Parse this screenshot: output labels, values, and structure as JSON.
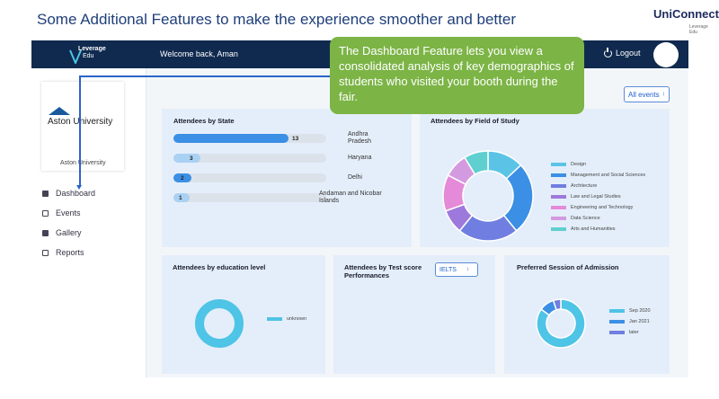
{
  "slide_title": "Some Additional Features to make the experience smoother and better",
  "brand_logo": {
    "name": "UniConnect",
    "sub": "Leverage Edu"
  },
  "topbar": {
    "brand_line1": "Leverage",
    "brand_line2": "Edu",
    "welcome": "Welcome back, Aman",
    "logout": "Logout",
    "bg_color": "#102a4f"
  },
  "sidebar": {
    "university_name": "Aston University",
    "university_sub": "Aston University",
    "items": [
      {
        "label": "Dashboard",
        "icon": "dashboard-icon"
      },
      {
        "label": "Events",
        "icon": "calendar-icon"
      },
      {
        "label": "Gallery",
        "icon": "gallery-icon"
      },
      {
        "label": "Reports",
        "icon": "reports-icon"
      }
    ]
  },
  "filter": {
    "selected": "All events"
  },
  "callout_text": "The Dashboard Feature lets you view a consolidated analysis of key demographics of students who visited your booth during the fair.",
  "accent_color": "#7cb446",
  "cards": {
    "state": {
      "title": "Attendees by State"
    },
    "field": {
      "title": "Attendees by Field of Study"
    },
    "education": {
      "title": "Attendees by education level"
    },
    "test": {
      "title": "Attendees by Test score Performances",
      "select": "IELTS"
    },
    "session": {
      "title": "Preferred Session of Admission"
    }
  },
  "chart_data": [
    {
      "type": "bar",
      "title": "Attendees by State",
      "categories": [
        "Andhra Pradesh",
        "Haryana",
        "Delhi",
        "Andaman and Nicobar Islands"
      ],
      "values": [
        13,
        3,
        2,
        1
      ],
      "colors": [
        "#3b8fe4",
        "#a9d1f3",
        "#3b8fe4",
        "#a9d1f3"
      ]
    },
    {
      "type": "pie",
      "title": "Attendees by Field of Study",
      "labels": [
        "Design",
        "Management and Social Sciences",
        "Architecture",
        "Law and Legal Studies",
        "Engineering and Technology",
        "Data Science",
        "Arts and Humanities"
      ],
      "values": [
        3,
        6,
        5,
        2,
        3,
        2,
        2
      ],
      "colors": [
        "#5bc4e6",
        "#3b8fe4",
        "#6f7ee0",
        "#9e79dc",
        "#e48ad8",
        "#d49ae0",
        "#60cfd0"
      ]
    },
    {
      "type": "pie",
      "title": "Attendees by education level",
      "labels": [
        "unknown"
      ],
      "values": [
        1
      ],
      "colors": [
        "#4ec4e6"
      ]
    },
    {
      "type": "pie",
      "title": "Preferred Session of Admission",
      "labels": [
        "Sep 2020",
        "Jan 2021",
        "later"
      ],
      "values": [
        17,
        2,
        1
      ],
      "colors": [
        "#4ec4e6",
        "#3b8fe4",
        "#6f7ee0"
      ]
    }
  ]
}
